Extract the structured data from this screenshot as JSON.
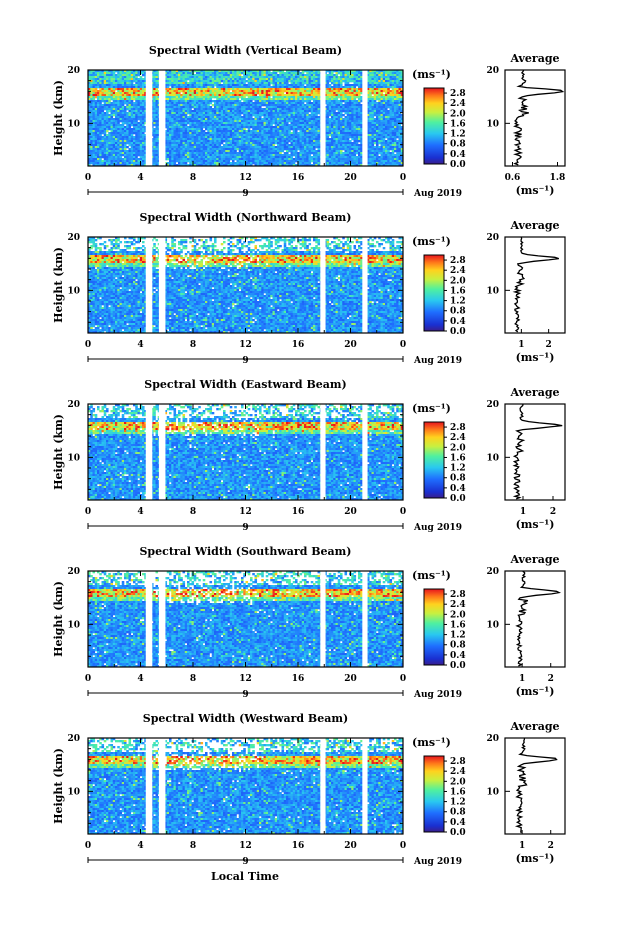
{
  "figure": {
    "xlabel": "Local Time",
    "date_label": "Aug 2019",
    "day_label": "9",
    "average_title": "Average",
    "ylabel": "Height (km)",
    "colorbar_units": "(ms⁻¹)",
    "average_xlabel": "(ms⁻¹)"
  },
  "chart_data": [
    {
      "type": "heatmap",
      "title": "Spectral Width (Vertical Beam)",
      "ylabel": "Height (km)",
      "x_ticks": [
        "0",
        "4",
        "8",
        "12",
        "16",
        "20",
        "0"
      ],
      "xlim": [
        0,
        24
      ],
      "y_ticks": [
        "20",
        "10"
      ],
      "ylim": [
        2,
        20
      ],
      "colorbar": {
        "units": "(ms⁻¹)",
        "ticks": [
          "2.8",
          "2.4",
          "2.0",
          "1.6",
          "1.2",
          "0.8",
          "0.4",
          "0.0"
        ],
        "range": [
          0,
          3.0
        ]
      },
      "data_gaps_hours": [
        [
          4.4,
          4.9
        ],
        [
          5.4,
          5.9
        ],
        [
          17.7,
          18.1
        ],
        [
          20.9,
          21.3
        ]
      ],
      "average_profile": {
        "title": "Average",
        "xlabel": "(ms⁻¹)",
        "x_ticks": [
          "0.6",
          "1.8"
        ],
        "xlim": [
          0.4,
          2.0
        ],
        "y_ticks": [
          "20",
          "10"
        ],
        "peak_height_km": 16.0,
        "peak_value": 1.95,
        "base_value": 0.75
      }
    },
    {
      "type": "heatmap",
      "title": "Spectral Width (Northward Beam)",
      "ylabel": "Height (km)",
      "x_ticks": [
        "0",
        "4",
        "8",
        "12",
        "16",
        "20",
        "0"
      ],
      "xlim": [
        0,
        24
      ],
      "y_ticks": [
        "20",
        "10"
      ],
      "ylim": [
        2,
        20
      ],
      "colorbar": {
        "units": "(ms⁻¹)",
        "ticks": [
          "2.8",
          "2.4",
          "2.0",
          "1.6",
          "1.2",
          "0.8",
          "0.4",
          "0.0"
        ],
        "range": [
          0,
          3.0
        ]
      },
      "data_gaps_hours": [
        [
          4.4,
          4.9
        ],
        [
          5.4,
          5.9
        ],
        [
          17.7,
          18.1
        ],
        [
          20.9,
          21.3
        ]
      ],
      "average_profile": {
        "title": "Average",
        "xlabel": "(ms⁻¹)",
        "x_ticks": [
          "1",
          "2"
        ],
        "xlim": [
          0.4,
          2.6
        ],
        "y_ticks": [
          "20",
          "10"
        ],
        "peak_height_km": 16.0,
        "peak_value": 2.3,
        "base_value": 0.85
      }
    },
    {
      "type": "heatmap",
      "title": "Spectral Width (Eastward Beam)",
      "ylabel": "Height (km)",
      "x_ticks": [
        "0",
        "4",
        "8",
        "12",
        "16",
        "20",
        "0"
      ],
      "xlim": [
        0,
        24
      ],
      "y_ticks": [
        "20",
        "10"
      ],
      "ylim": [
        2,
        20
      ],
      "colorbar": {
        "units": "(ms⁻¹)",
        "ticks": [
          "2.8",
          "2.4",
          "2.0",
          "1.6",
          "1.2",
          "0.8",
          "0.4",
          "0.0"
        ],
        "range": [
          0,
          3.0
        ]
      },
      "data_gaps_hours": [
        [
          4.4,
          4.9
        ],
        [
          5.4,
          5.9
        ],
        [
          17.7,
          18.1
        ],
        [
          20.9,
          21.3
        ]
      ],
      "average_profile": {
        "title": "Average",
        "xlabel": "(ms⁻¹)",
        "x_ticks": [
          "1",
          "2"
        ],
        "xlim": [
          0.4,
          2.4
        ],
        "y_ticks": [
          "20",
          "10"
        ],
        "peak_height_km": 16.0,
        "peak_value": 2.25,
        "base_value": 0.8
      }
    },
    {
      "type": "heatmap",
      "title": "Spectral Width (Southward Beam)",
      "ylabel": "Height (km)",
      "x_ticks": [
        "0",
        "4",
        "8",
        "12",
        "16",
        "20",
        "0"
      ],
      "xlim": [
        0,
        24
      ],
      "y_ticks": [
        "20",
        "10"
      ],
      "ylim": [
        2,
        20
      ],
      "colorbar": {
        "units": "(ms⁻¹)",
        "ticks": [
          "2.8",
          "2.4",
          "2.0",
          "1.6",
          "1.2",
          "0.8",
          "0.4",
          "0.0"
        ],
        "range": [
          0,
          3.0
        ]
      },
      "data_gaps_hours": [
        [
          4.4,
          4.9
        ],
        [
          5.4,
          5.9
        ],
        [
          17.7,
          18.1
        ],
        [
          20.9,
          21.3
        ]
      ],
      "average_profile": {
        "title": "Average",
        "xlabel": "(ms⁻¹)",
        "x_ticks": [
          "1",
          "2"
        ],
        "xlim": [
          0.4,
          2.5
        ],
        "y_ticks": [
          "20",
          "10"
        ],
        "peak_height_km": 16.0,
        "peak_value": 2.3,
        "base_value": 0.9
      }
    },
    {
      "type": "heatmap",
      "title": "Spectral Width (Westward Beam)",
      "ylabel": "Height (km)",
      "x_ticks": [
        "0",
        "4",
        "8",
        "12",
        "16",
        "20",
        "0"
      ],
      "xlim": [
        0,
        24
      ],
      "y_ticks": [
        "20",
        "10"
      ],
      "ylim": [
        2,
        20
      ],
      "colorbar": {
        "units": "(ms⁻¹)",
        "ticks": [
          "2.8",
          "2.4",
          "2.0",
          "1.6",
          "1.2",
          "0.8",
          "0.4",
          "0.0"
        ],
        "range": [
          0,
          3.0
        ]
      },
      "data_gaps_hours": [
        [
          4.4,
          4.9
        ],
        [
          5.4,
          5.9
        ],
        [
          17.7,
          18.1
        ],
        [
          20.9,
          21.3
        ]
      ],
      "average_profile": {
        "title": "Average",
        "xlabel": "(ms⁻¹)",
        "x_ticks": [
          "1",
          "2"
        ],
        "xlim": [
          0.4,
          2.5
        ],
        "y_ticks": [
          "20",
          "10"
        ],
        "peak_height_km": 16.0,
        "peak_value": 2.3,
        "base_value": 0.9
      }
    }
  ]
}
